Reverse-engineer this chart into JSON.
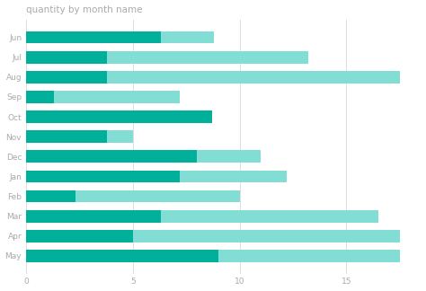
{
  "title": "quantity by month name",
  "months": [
    "Jun",
    "Jul",
    "Aug",
    "Sep",
    "Oct",
    "Nov",
    "Dec",
    "Jan",
    "Feb",
    "Mar",
    "Apr",
    "May"
  ],
  "series1_dark": [
    6.3,
    3.8,
    3.8,
    1.3,
    8.7,
    3.8,
    8.0,
    7.2,
    2.3,
    6.3,
    5.0,
    9.0
  ],
  "series2_light_total": [
    8.8,
    13.2,
    17.5,
    7.2,
    8.7,
    5.0,
    11.0,
    12.2,
    10.0,
    16.5,
    17.5,
    17.5
  ],
  "color_dark": "#00B09A",
  "color_light": "#82DDD5",
  "background_color": "#FFFFFF",
  "xlim": [
    0,
    18.5
  ],
  "xticks": [
    0,
    5,
    10,
    15
  ],
  "title_fontsize": 7.5,
  "tick_fontsize": 6.5,
  "bar_height": 0.62,
  "grid_color": "#D8D8D8",
  "text_color": "#AAAAAA"
}
